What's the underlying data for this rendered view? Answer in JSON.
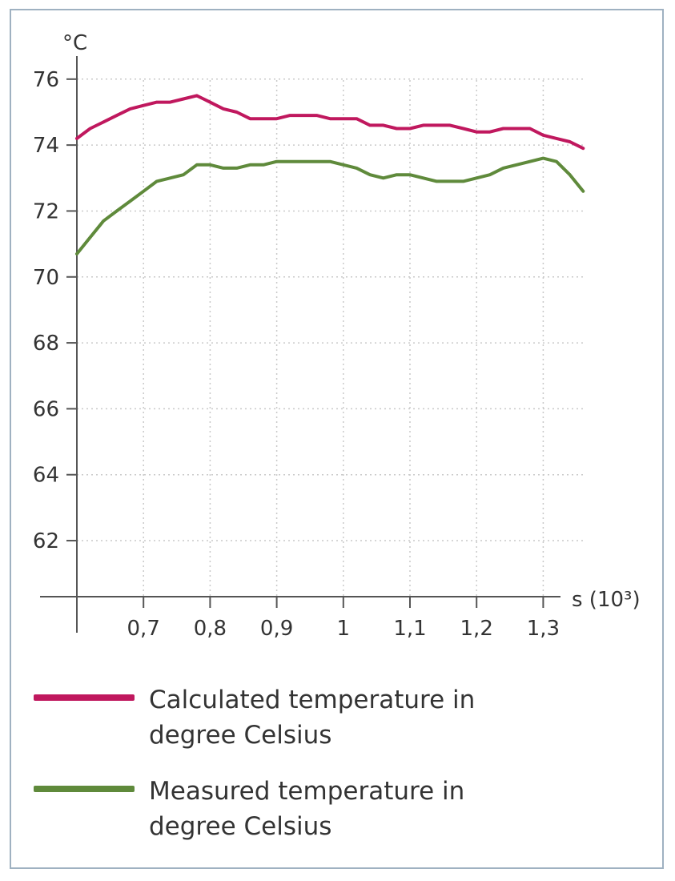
{
  "chart_data": {
    "type": "line",
    "title": "",
    "ylabel": "°C",
    "xlabel": "s (10³)",
    "xlim": [
      0.6,
      1.35
    ],
    "ylim": [
      60.3,
      76.7
    ],
    "yticks": [
      62,
      64,
      66,
      68,
      70,
      72,
      74,
      76
    ],
    "ytick_labels": [
      "62",
      "64",
      "66",
      "68",
      "70",
      "72",
      "74",
      "76"
    ],
    "xticks": [
      0.7,
      0.8,
      0.9,
      1.0,
      1.1,
      1.2,
      1.3
    ],
    "xtick_labels": [
      "0,7",
      "0,8",
      "0,9",
      "1",
      "1,1",
      "1,2",
      "1,3"
    ],
    "grid": true,
    "series": [
      {
        "name": "Calculated temperature in degree Celsius",
        "color": "#c0185e",
        "x": [
          0.6,
          0.62,
          0.64,
          0.66,
          0.68,
          0.7,
          0.72,
          0.74,
          0.76,
          0.78,
          0.8,
          0.82,
          0.84,
          0.86,
          0.88,
          0.9,
          0.92,
          0.94,
          0.96,
          0.98,
          1.0,
          1.02,
          1.04,
          1.06,
          1.08,
          1.1,
          1.12,
          1.14,
          1.16,
          1.18,
          1.2,
          1.22,
          1.24,
          1.26,
          1.28,
          1.3,
          1.32,
          1.34,
          1.36
        ],
        "y": [
          74.2,
          74.5,
          74.7,
          74.9,
          75.1,
          75.2,
          75.3,
          75.3,
          75.4,
          75.5,
          75.3,
          75.1,
          75.0,
          74.8,
          74.8,
          74.8,
          74.9,
          74.9,
          74.9,
          74.8,
          74.8,
          74.8,
          74.6,
          74.6,
          74.5,
          74.5,
          74.6,
          74.6,
          74.6,
          74.5,
          74.4,
          74.4,
          74.5,
          74.5,
          74.5,
          74.3,
          74.2,
          74.1,
          73.9
        ]
      },
      {
        "name": "Measured temperature in degree Celsius",
        "color": "#5f8a3b",
        "x": [
          0.6,
          0.62,
          0.64,
          0.66,
          0.68,
          0.7,
          0.72,
          0.74,
          0.76,
          0.78,
          0.8,
          0.82,
          0.84,
          0.86,
          0.88,
          0.9,
          0.92,
          0.94,
          0.96,
          0.98,
          1.0,
          1.02,
          1.04,
          1.06,
          1.08,
          1.1,
          1.12,
          1.14,
          1.16,
          1.18,
          1.2,
          1.22,
          1.24,
          1.26,
          1.28,
          1.3,
          1.32,
          1.34,
          1.36
        ],
        "y": [
          70.7,
          71.2,
          71.7,
          72.0,
          72.3,
          72.6,
          72.9,
          73.0,
          73.1,
          73.4,
          73.4,
          73.3,
          73.3,
          73.4,
          73.4,
          73.5,
          73.5,
          73.5,
          73.5,
          73.5,
          73.4,
          73.3,
          73.1,
          73.0,
          73.1,
          73.1,
          73.0,
          72.9,
          72.9,
          72.9,
          73.0,
          73.1,
          73.3,
          73.4,
          73.5,
          73.6,
          73.5,
          73.1,
          72.6
        ]
      }
    ]
  }
}
